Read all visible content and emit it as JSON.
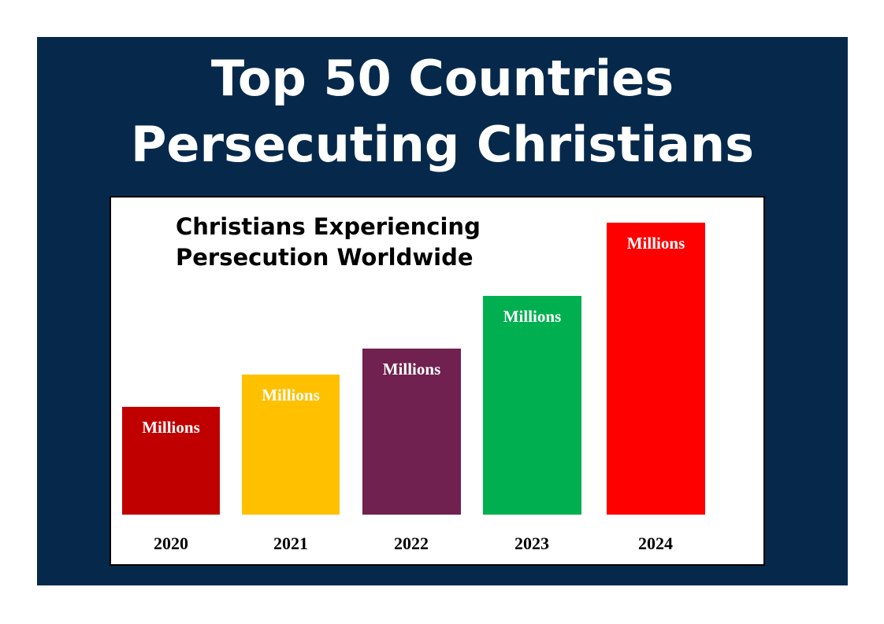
{
  "header": {
    "title_line1": "Top 50 Countries",
    "title_line2": "Persecuting Christians"
  },
  "chart_data": {
    "type": "bar",
    "title": "Christians Experiencing Persecution Worldwide",
    "title_line1": "Christians Experiencing",
    "title_line2": "Persecution Worldwide",
    "categories": [
      "2020",
      "2021",
      "2022",
      "2023",
      "2024"
    ],
    "values": [
      37,
      48,
      57,
      75,
      100
    ],
    "value_units": "relative bar height (2024 = 100); no numeric values printed",
    "bar_labels": [
      "Millions",
      "Millions",
      "Millions",
      "Millions",
      "Millions"
    ],
    "colors": [
      "#c00000",
      "#ffc000",
      "#70214f",
      "#00b050",
      "#ff0000"
    ],
    "xlabel": "",
    "ylabel": "",
    "ylim": [
      0,
      100
    ],
    "grid": false,
    "legend": "none"
  }
}
